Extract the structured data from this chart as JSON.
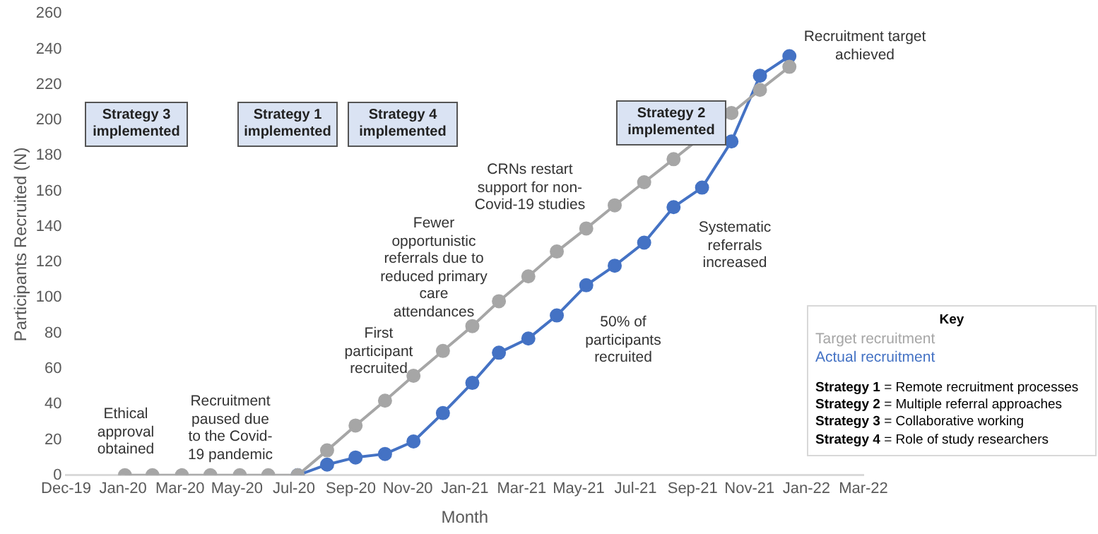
{
  "chart_data": {
    "type": "line",
    "xlabel": "Month",
    "ylabel": "Participants Recruited (N)",
    "legend_title": "Key",
    "legend": "bottom right",
    "marker": "circle",
    "line_style": "solid",
    "grid": false,
    "x": [
      "2020-02-01",
      "2020-03-01",
      "2020-04-01",
      "2020-05-01",
      "2020-06-01",
      "2020-07-01",
      "2020-08-01",
      "2020-09-01",
      "2020-10-01",
      "2020-11-01",
      "2020-12-01",
      "2021-01-01",
      "2021-02-01",
      "2021-03-01",
      "2021-04-01",
      "2021-05-01",
      "2021-06-01",
      "2021-07-01",
      "2021-08-01",
      "2021-09-01",
      "2021-10-01",
      "2021-11-01",
      "2021-12-01",
      "2022-01-01"
    ],
    "series": [
      {
        "name": "Target recruitment",
        "color": "#a6a6a6",
        "values": [
          0,
          0,
          0,
          0,
          0,
          0,
          0,
          14,
          28,
          42,
          56,
          70,
          84,
          98,
          112,
          126,
          139,
          152,
          165,
          178,
          null,
          204,
          217,
          230
        ]
      },
      {
        "name": "Actual recruitment",
        "color": "#4472c4",
        "values": [
          null,
          null,
          null,
          null,
          null,
          null,
          0,
          6,
          10,
          12,
          19,
          35,
          52,
          69,
          77,
          90,
          107,
          118,
          131,
          151,
          162,
          188,
          225,
          236
        ]
      }
    ],
    "xlim": [
      "2019-12-01",
      "2022-03-20"
    ],
    "xticks": [
      {
        "value": "2019-12-01",
        "label": "Dec-19"
      },
      {
        "value": "2020-01-30",
        "label": "Jan-20"
      },
      {
        "value": "2020-03-30",
        "label": "Mar-20"
      },
      {
        "value": "2020-05-29",
        "label": "May-20"
      },
      {
        "value": "2020-07-28",
        "label": "Jul-20"
      },
      {
        "value": "2020-09-26",
        "label": "Sep-20"
      },
      {
        "value": "2020-11-25",
        "label": "Nov-20"
      },
      {
        "value": "2021-01-24",
        "label": "Jan-21"
      },
      {
        "value": "2021-03-25",
        "label": "Mar-21"
      },
      {
        "value": "2021-05-24",
        "label": "May-21"
      },
      {
        "value": "2021-07-23",
        "label": "Jul-21"
      },
      {
        "value": "2021-09-21",
        "label": "Sep-21"
      },
      {
        "value": "2021-11-20",
        "label": "Nov-21"
      },
      {
        "value": "2022-01-19",
        "label": "Jan-22"
      },
      {
        "value": "2022-03-20",
        "label": "Mar-22"
      }
    ],
    "ylim": [
      0,
      260
    ],
    "yticks": [
      0,
      20,
      40,
      60,
      80,
      100,
      120,
      140,
      160,
      180,
      200,
      220,
      240,
      260
    ],
    "annotations": [
      "Strategy 3 implemented",
      "Strategy 1 implemented",
      "Strategy 4 implemented",
      "Strategy 2 implemented",
      "Ethical approval obtained",
      "Recruitment paused due to the Covid-19 pandemic",
      "First participant recruited",
      "Fewer opportunistic referrals due to reduced primary care attendances",
      "CRNs restart support for non-Covid-19 studies",
      "50% of participants recruited",
      "Systematic referrals increased",
      "Recruitment target achieved",
      "Strategy 1 = Remote recruitment processes",
      "Strategy 2 = Multiple referral approaches",
      "Strategy 3 = Collaborative working",
      "Strategy 4 = Role of study researchers"
    ]
  }
}
